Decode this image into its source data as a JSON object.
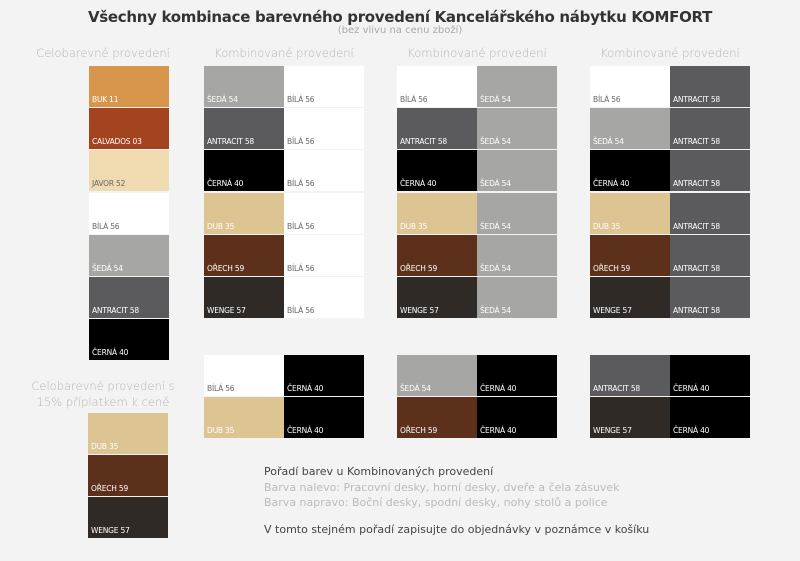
{
  "title": "Všechny kombinace barevného provedení Kancelářského nábytku KOMFORT",
  "subtitle": "(bez vlivu na cenu zboží)",
  "headers": {
    "solid": "Celobarevné provedení",
    "combined": "Kombinované provedení",
    "premium": "Celobarevné provedení s 15% příplatkem k ceně"
  },
  "colors": {
    "BUK 11": "#d8954c",
    "CALVADOS 03": "#a4431f",
    "JAVOR 52": "#f0dbb0",
    "BÍLÁ 56": "#ffffff",
    "ŠEDÁ 54": "#a6a6a4",
    "ANTRACIT 58": "#5b5b5d",
    "ČERNÁ 40": "#000000",
    "DUB 35": "#dcc493",
    "OŘECH 59": "#5d301b",
    "WENGE 57": "#302a27"
  },
  "solid": [
    "BUK 11",
    "CALVADOS 03",
    "JAVOR 52",
    "BÍLÁ 56",
    "ŠEDÁ 54",
    "ANTRACIT 58",
    "ČERNÁ 40"
  ],
  "premium": [
    "DUB 35",
    "OŘECH 59",
    "WENGE 57"
  ],
  "groups": [
    {
      "top": [
        [
          "ŠEDÁ 54",
          "BÍLÁ 56"
        ],
        [
          "ANTRACIT 58",
          "BÍLÁ 56"
        ],
        [
          "ČERNÁ 40",
          "BÍLÁ 56"
        ],
        [
          "DUB 35",
          "BÍLÁ 56"
        ],
        [
          "OŘECH 59",
          "BÍLÁ 56"
        ],
        [
          "WENGE 57",
          "BÍLÁ 56"
        ]
      ],
      "bottom": [
        [
          "BÍLÁ 56",
          "ČERNÁ 40"
        ],
        [
          "DUB 35",
          "ČERNÁ 40"
        ]
      ]
    },
    {
      "top": [
        [
          "BÍLÁ 56",
          "ŠEDÁ 54"
        ],
        [
          "ANTRACIT 58",
          "ŠEDÁ 54"
        ],
        [
          "ČERNÁ 40",
          "ŠEDÁ 54"
        ],
        [
          "DUB 35",
          "ŠEDÁ 54"
        ],
        [
          "OŘECH 59",
          "ŠEDÁ 54"
        ],
        [
          "WENGE 57",
          "ŠEDÁ 54"
        ]
      ],
      "bottom": [
        [
          "ŠEDÁ 54",
          "ČERNÁ 40"
        ],
        [
          "OŘECH 59",
          "ČERNÁ 40"
        ]
      ]
    },
    {
      "top": [
        [
          "BÍLÁ 56",
          "ANTRACIT 58"
        ],
        [
          "ŠEDÁ 54",
          "ANTRACIT 58"
        ],
        [
          "ČERNÁ 40",
          "ANTRACIT 58"
        ],
        [
          "DUB 35",
          "ANTRACIT 58"
        ],
        [
          "OŘECH 59",
          "ANTRACIT 58"
        ],
        [
          "WENGE 57",
          "ANTRACIT 58"
        ]
      ],
      "bottom": [
        [
          "ANTRACIT 58",
          "ČERNÁ 40"
        ],
        [
          "WENGE 57",
          "ČERNÁ 40"
        ]
      ]
    }
  ],
  "notes": {
    "heading": "Pořadí barev u Kombinovaných provedení",
    "left": "Barva nalevo: Pracovní desky, horní desky, dveře a čela zásuvek",
    "right": "Barva napravo: Boční desky, spodní desky, nohy stolů a police",
    "order": "V tomto stejném pořadí zapisujte do objednávky v poznámce v košíku"
  }
}
